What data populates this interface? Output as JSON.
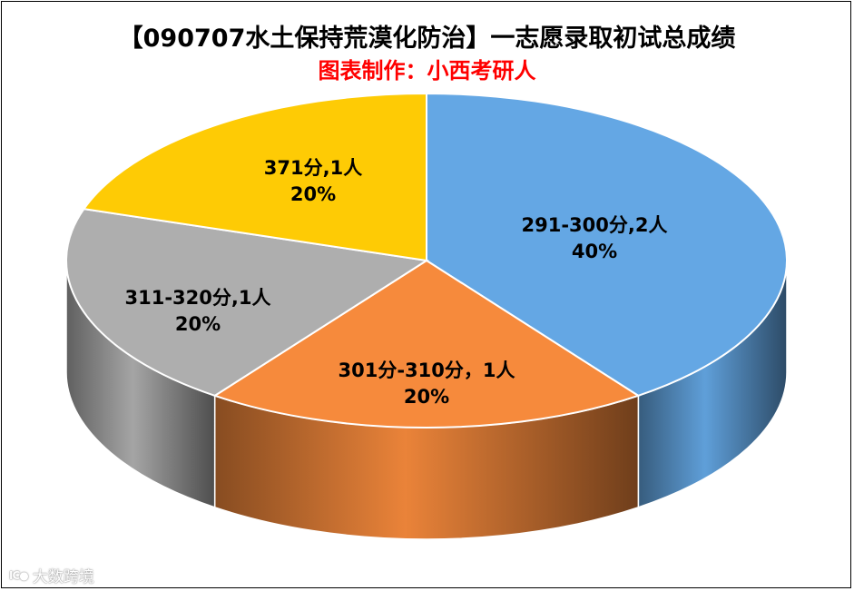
{
  "title": "【090707水土保持荒漠化防治】一志愿录取初试总成绩",
  "subtitle": "图表制作：小西考研人",
  "watermark": {
    "logo": "IC●",
    "text": "大数跨境"
  },
  "chart_data": {
    "type": "pie",
    "style": "3d",
    "title": "【090707水土保持荒漠化防治】一志愿录取初试总成绩",
    "subtitle": "图表制作：小西考研人",
    "slices": [
      {
        "label": "291-300分,2人",
        "value": 2,
        "percent": "40%",
        "color": "#64a7e4"
      },
      {
        "label": "301分-310分，1人",
        "value": 1,
        "percent": "20%",
        "color": "#f68a3c"
      },
      {
        "label": "311-320分,1人",
        "value": 1,
        "percent": "20%",
        "color": "#aeaeae"
      },
      {
        "label": "371分,1人",
        "value": 1,
        "percent": "20%",
        "color": "#fecb05"
      }
    ],
    "start_angle_deg": -90,
    "direction": "clockwise",
    "legend": "none"
  }
}
